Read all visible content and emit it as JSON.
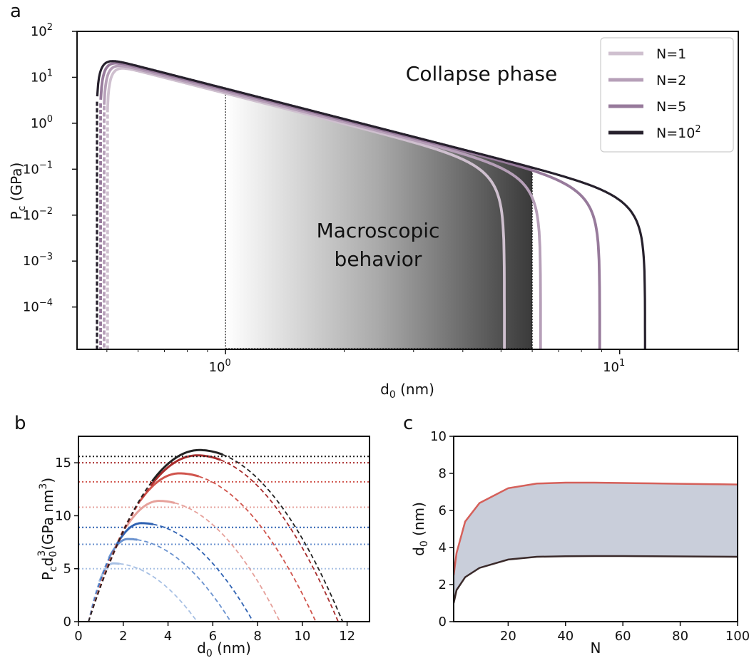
{
  "chart_data": [
    {
      "panel": "a",
      "type": "line",
      "xlabel": "d",
      "xlabel_sub": "0",
      "xlabel_unit": " (nm)",
      "ylabel": "P",
      "ylabel_sub": "c",
      "ylabel_unit": " (GPa)",
      "xscale": "log",
      "yscale": "log",
      "xlim": [
        0.42,
        20
      ],
      "ylim": [
        1.2e-05,
        100
      ],
      "x_ticks": [
        {
          "value": 1,
          "base": "10",
          "exp": "0"
        },
        {
          "value": 10,
          "base": "10",
          "exp": "1"
        }
      ],
      "y_ticks": [
        {
          "value": 100,
          "base": "10",
          "exp": "2"
        },
        {
          "value": 10,
          "base": "10",
          "exp": "1"
        },
        {
          "value": 1,
          "base": "10",
          "exp": "0"
        },
        {
          "value": 0.1,
          "base": "10",
          "exp": "−1"
        },
        {
          "value": 0.01,
          "base": "10",
          "exp": "−2"
        },
        {
          "value": 0.001,
          "base": "10",
          "exp": "−3"
        },
        {
          "value": 0.0001,
          "base": "10",
          "exp": "−4"
        }
      ],
      "legend_position": "top-right",
      "series": [
        {
          "name": "N=1",
          "label_main": "N=1",
          "label_exp": "",
          "color": "#cfc0cf",
          "x_start": 0.5,
          "peak_x": 0.6,
          "peak_y": 13.8,
          "x_end": 5.1
        },
        {
          "name": "N=2",
          "label_main": "N=2",
          "label_exp": "",
          "color": "#b69fb8",
          "x_start": 0.49,
          "peak_x": 0.6,
          "peak_y": 15.0,
          "x_end": 6.3
        },
        {
          "name": "N=5",
          "label_main": "N=5",
          "label_exp": "",
          "color": "#977a9b",
          "x_start": 0.48,
          "peak_x": 0.6,
          "peak_y": 16.5,
          "x_end": 8.9
        },
        {
          "name": "N=102",
          "label_main": "N=10",
          "label_exp": "2",
          "color": "#26202c",
          "x_start": 0.47,
          "peak_x": 0.6,
          "peak_y": 17.5,
          "x_end": 11.6
        }
      ],
      "shaded_region": {
        "x_from": 1.0,
        "x_to": 6.0
      },
      "annotations": [
        {
          "text": "Collapse phase"
        },
        {
          "text": "Macroscopic"
        },
        {
          "text": "behavior"
        }
      ]
    },
    {
      "panel": "b",
      "type": "line",
      "xlabel": "d",
      "xlabel_sub": "0",
      "xlabel_unit": " (nm)",
      "ylabel_main": "P",
      "ylabel_sub1": "c",
      "ylabel_mid": "d",
      "ylabel_sub2": "0",
      "ylabel_sup": "3",
      "ylabel_unit": "(GPa nm",
      "ylabel_unit_sup": "3",
      "ylabel_close": ")",
      "xlim": [
        0,
        13
      ],
      "ylim": [
        0,
        17.5
      ],
      "x_ticks": [
        "0",
        "2",
        "4",
        "6",
        "8",
        "10",
        "12"
      ],
      "y_ticks": [
        "0",
        "5",
        "10",
        "15"
      ],
      "series": [
        {
          "color": "#a7c0e4",
          "peak_x": 1.55,
          "peak_y": 5.5,
          "x_end": 5.3,
          "plateau": 5.0
        },
        {
          "color": "#6a92cf",
          "peak_x": 2.2,
          "peak_y": 7.8,
          "x_end": 6.8,
          "plateau": 7.3
        },
        {
          "color": "#2f62b2",
          "peak_x": 2.8,
          "peak_y": 9.3,
          "x_end": 7.8,
          "plateau": 8.9
        },
        {
          "color": "#e6a19b",
          "peak_x": 3.6,
          "peak_y": 11.4,
          "x_end": 9.0,
          "plateau": 10.8
        },
        {
          "color": "#d0544c",
          "peak_x": 4.5,
          "peak_y": 14.0,
          "x_end": 10.6,
          "plateau": 13.2
        },
        {
          "color": "#a82d2d",
          "peak_x": 5.3,
          "peak_y": 15.7,
          "x_end": 11.6,
          "plateau": 15.0
        },
        {
          "color": "#222222",
          "peak_x": 5.4,
          "peak_y": 16.2,
          "x_end": 11.8,
          "plateau": 15.6
        }
      ]
    },
    {
      "panel": "c",
      "type": "area",
      "xlabel": "N",
      "ylabel": "d",
      "ylabel_sub": "0",
      "ylabel_unit": " (nm)",
      "xlim": [
        1,
        100
      ],
      "ylim": [
        0,
        10
      ],
      "x_ticks": [
        "20",
        "40",
        "60",
        "80",
        "100"
      ],
      "y_ticks": [
        "0",
        "2",
        "4",
        "6",
        "8",
        "10"
      ],
      "x": [
        1,
        2,
        5,
        10,
        20,
        30,
        40,
        50,
        60,
        70,
        80,
        90,
        100
      ],
      "upper": [
        2.5,
        3.7,
        5.4,
        6.4,
        7.2,
        7.45,
        7.5,
        7.5,
        7.48,
        7.46,
        7.44,
        7.42,
        7.4
      ],
      "lower": [
        1.0,
        1.7,
        2.4,
        2.9,
        3.35,
        3.5,
        3.53,
        3.54,
        3.54,
        3.53,
        3.52,
        3.51,
        3.5
      ],
      "upper_color": "#d5605a",
      "lower_color": "#3a2a2a",
      "fill_color": "#c9ceda"
    }
  ],
  "panel_labels": {
    "a": "a",
    "b": "b",
    "c": "c"
  }
}
